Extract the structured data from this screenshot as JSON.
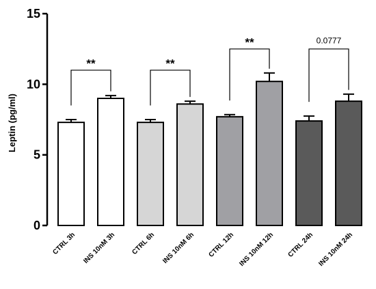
{
  "chart_data": {
    "type": "bar",
    "ylabel": "Leptin (pg/ml)",
    "ylim": [
      0,
      15
    ],
    "yticks": [
      0,
      5,
      10,
      15
    ],
    "ytick_labels": [
      "0",
      "5",
      "10",
      "15"
    ],
    "categories": [
      "CTRL 3h",
      "INS 10nM 3h",
      "CTRL 6h",
      "INS 10nM 6h",
      "CTRL 12h",
      "INS 10nM 12h",
      "CTRL 24h",
      "INS 10nM 24h"
    ],
    "values": [
      7.3,
      9.0,
      7.3,
      8.6,
      7.7,
      10.2,
      7.4,
      8.8
    ],
    "errors": [
      0.2,
      0.2,
      0.2,
      0.2,
      0.15,
      0.6,
      0.35,
      0.5
    ],
    "bar_colors": [
      "#ffffff",
      "#ffffff",
      "#d6d6d6",
      "#d6d6d6",
      "#a0a0a4",
      "#a0a0a4",
      "#5a5a5a",
      "#5a5a5a"
    ],
    "annotations": [
      {
        "from": 0,
        "to": 1,
        "label": "**",
        "y": 11.0
      },
      {
        "from": 2,
        "to": 3,
        "label": "**",
        "y": 11.0
      },
      {
        "from": 4,
        "to": 5,
        "label": "**",
        "y": 12.5
      },
      {
        "from": 6,
        "to": 7,
        "label": "0.0777",
        "y": 12.5
      }
    ],
    "grid": false,
    "legend": "none"
  }
}
